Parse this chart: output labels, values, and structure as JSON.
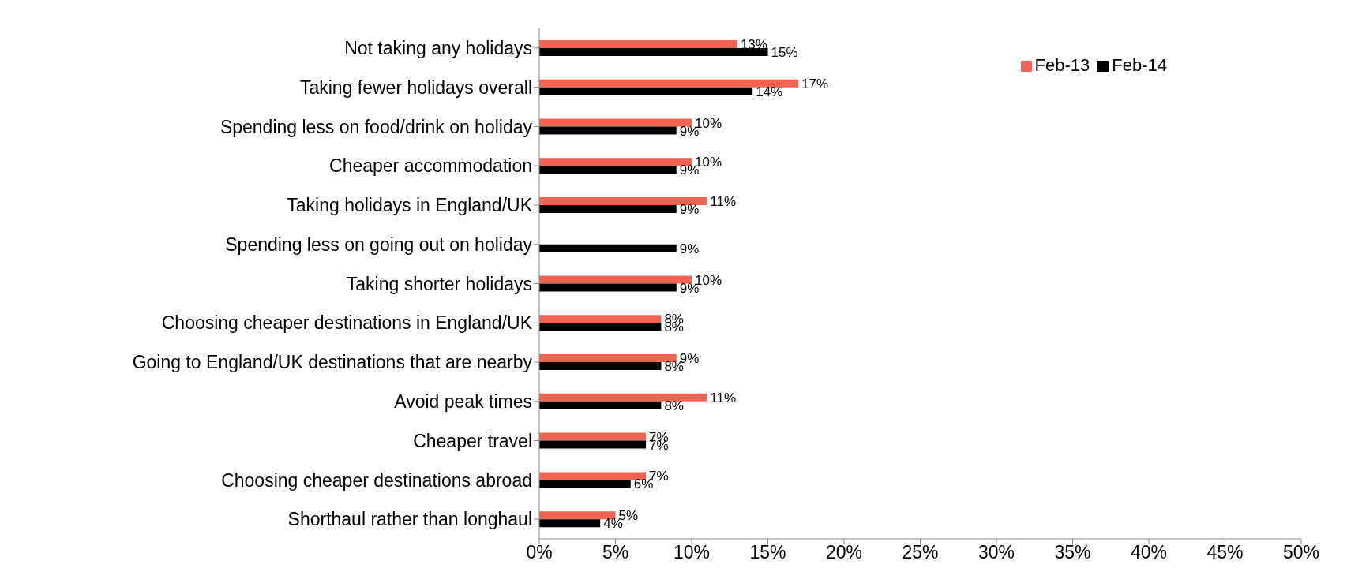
{
  "chart_data": {
    "type": "bar",
    "orientation": "horizontal",
    "categories": [
      "Not taking any holidays",
      "Taking fewer holidays overall",
      "Spending less on food/drink on holiday",
      "Cheaper accommodation",
      "Taking holidays in England/UK",
      "Spending less on going out on holiday",
      "Taking shorter holidays",
      "Choosing cheaper destinations in England/UK",
      "Going to England/UK destinations that are nearby",
      "Avoid peak times",
      "Cheaper travel",
      "Choosing cheaper destinations abroad",
      "Shorthaul rather than longhaul"
    ],
    "series": [
      {
        "name": "Feb-13",
        "color": "#f26352",
        "values": [
          13,
          17,
          10,
          10,
          11,
          null,
          10,
          8,
          9,
          11,
          7,
          7,
          5
        ],
        "value_labels": [
          "13%",
          "17%",
          "10%",
          "10%",
          "11%",
          null,
          "10%",
          "8%",
          "9%",
          "11%",
          "7%",
          "7%",
          "5%"
        ]
      },
      {
        "name": "Feb-14",
        "color": "#000000",
        "values": [
          15,
          14,
          9,
          9,
          9,
          9,
          9,
          8,
          8,
          8,
          7,
          6,
          4
        ],
        "value_labels": [
          "15%",
          "14%",
          "9%",
          "9%",
          "9%",
          "9%",
          "9%",
          "8%",
          "8%",
          "8%",
          "7%",
          "6%",
          "4%"
        ]
      }
    ],
    "xlim": [
      0,
      50
    ],
    "xticks": [
      {
        "value": 0,
        "label": "0%"
      },
      {
        "value": 5,
        "label": "5%"
      },
      {
        "value": 10,
        "label": "10%"
      },
      {
        "value": 15,
        "label": "15%"
      },
      {
        "value": 20,
        "label": "20%"
      },
      {
        "value": 25,
        "label": "25%"
      },
      {
        "value": 30,
        "label": "30%"
      },
      {
        "value": 35,
        "label": "35%"
      },
      {
        "value": 40,
        "label": "40%"
      },
      {
        "value": 45,
        "label": "45%"
      },
      {
        "value": 50,
        "label": "50%"
      }
    ],
    "grid": false,
    "legend": "top right"
  }
}
